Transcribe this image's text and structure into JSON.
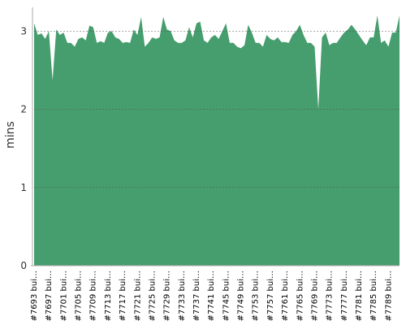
{
  "chart_data": {
    "type": "area",
    "y_label": "mins",
    "color": "#469d6d",
    "ylim": [
      0,
      3.2
    ],
    "yticks": [
      0,
      1,
      2,
      3
    ],
    "grid": true,
    "categories": [
      "#7693 bui…",
      null,
      null,
      null,
      "#7697 bui…",
      null,
      null,
      null,
      "#7701 bui…",
      null,
      null,
      null,
      "#7705 bui…",
      null,
      null,
      null,
      "#7709 bui…",
      null,
      null,
      null,
      "#7713 bui…",
      null,
      null,
      null,
      "#7717 bui…",
      null,
      null,
      null,
      "#7721 bui…",
      null,
      null,
      null,
      "#7725 bui…",
      null,
      null,
      null,
      "#7729 bui…",
      null,
      null,
      null,
      "#7733 bui…",
      null,
      null,
      null,
      "#7737 bui…",
      null,
      null,
      null,
      "#7741 bui…",
      null,
      null,
      null,
      "#7745 bui…",
      null,
      null,
      null,
      "#7749 bui…",
      null,
      null,
      null,
      "#7753 bui…",
      null,
      null,
      null,
      "#7757 bui…",
      null,
      null,
      null,
      "#7761 bui…",
      null,
      null,
      null,
      "#7765 bui…",
      null,
      null,
      null,
      "#7769 bui…",
      null,
      null,
      null,
      "#7773 bui…",
      null,
      null,
      null,
      "#7777 bui…",
      null,
      null,
      null,
      "#7781 bui…",
      null,
      null,
      null,
      "#7785 bui…",
      null,
      null,
      null,
      "#7789 bui…",
      null,
      null,
      null
    ],
    "values": [
      3.1,
      2.95,
      2.97,
      2.9,
      3.0,
      2.37,
      3.02,
      2.95,
      2.98,
      2.85,
      2.85,
      2.8,
      2.9,
      2.92,
      2.88,
      3.07,
      3.05,
      2.85,
      2.87,
      2.85,
      2.98,
      3.0,
      2.92,
      2.9,
      2.85,
      2.86,
      2.85,
      3.02,
      2.95,
      3.18,
      2.8,
      2.85,
      2.92,
      2.9,
      2.92,
      3.18,
      3.02,
      3.0,
      2.88,
      2.85,
      2.85,
      2.88,
      3.05,
      2.92,
      3.1,
      3.12,
      2.88,
      2.85,
      2.92,
      2.95,
      2.9,
      3.0,
      3.1,
      2.85,
      2.85,
      2.8,
      2.78,
      2.82,
      3.08,
      2.98,
      2.85,
      2.85,
      2.8,
      2.95,
      2.9,
      2.88,
      2.92,
      2.86,
      2.86,
      2.85,
      2.95,
      3.0,
      3.08,
      2.95,
      2.85,
      2.85,
      2.8,
      2.0,
      2.92,
      2.98,
      2.82,
      2.85,
      2.85,
      2.92,
      2.98,
      3.02,
      3.08,
      3.02,
      2.95,
      2.88,
      2.82,
      2.92,
      2.92,
      3.2,
      2.85,
      2.88,
      2.8,
      2.98,
      2.98,
      3.2
    ]
  }
}
